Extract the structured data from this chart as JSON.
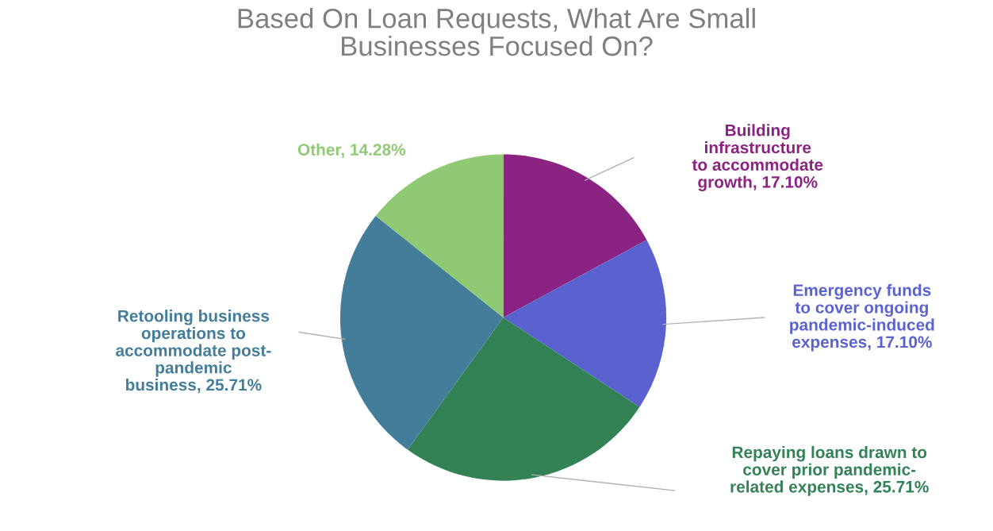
{
  "chart_data": {
    "type": "pie",
    "title": "Based On Loan Requests, What Are Small Businesses Focused On?",
    "categories": [
      "Building infrastructure to accommodate growth",
      "Emergency funds to cover ongoing pandemic-induced expenses",
      "Repaying loans drawn to cover prior pandemic-related expenses",
      "Retooling business operations to accommodate post-pandemic business",
      "Other"
    ],
    "values": [
      17.1,
      17.1,
      25.71,
      25.71,
      14.28
    ],
    "value_labels": [
      "17.10%",
      "17.10%",
      "25.71%",
      "25.71%",
      "14.28%"
    ],
    "colors": [
      "#8a2381",
      "#5a62d0",
      "#328255",
      "#437d99",
      "#8fc974"
    ]
  }
}
